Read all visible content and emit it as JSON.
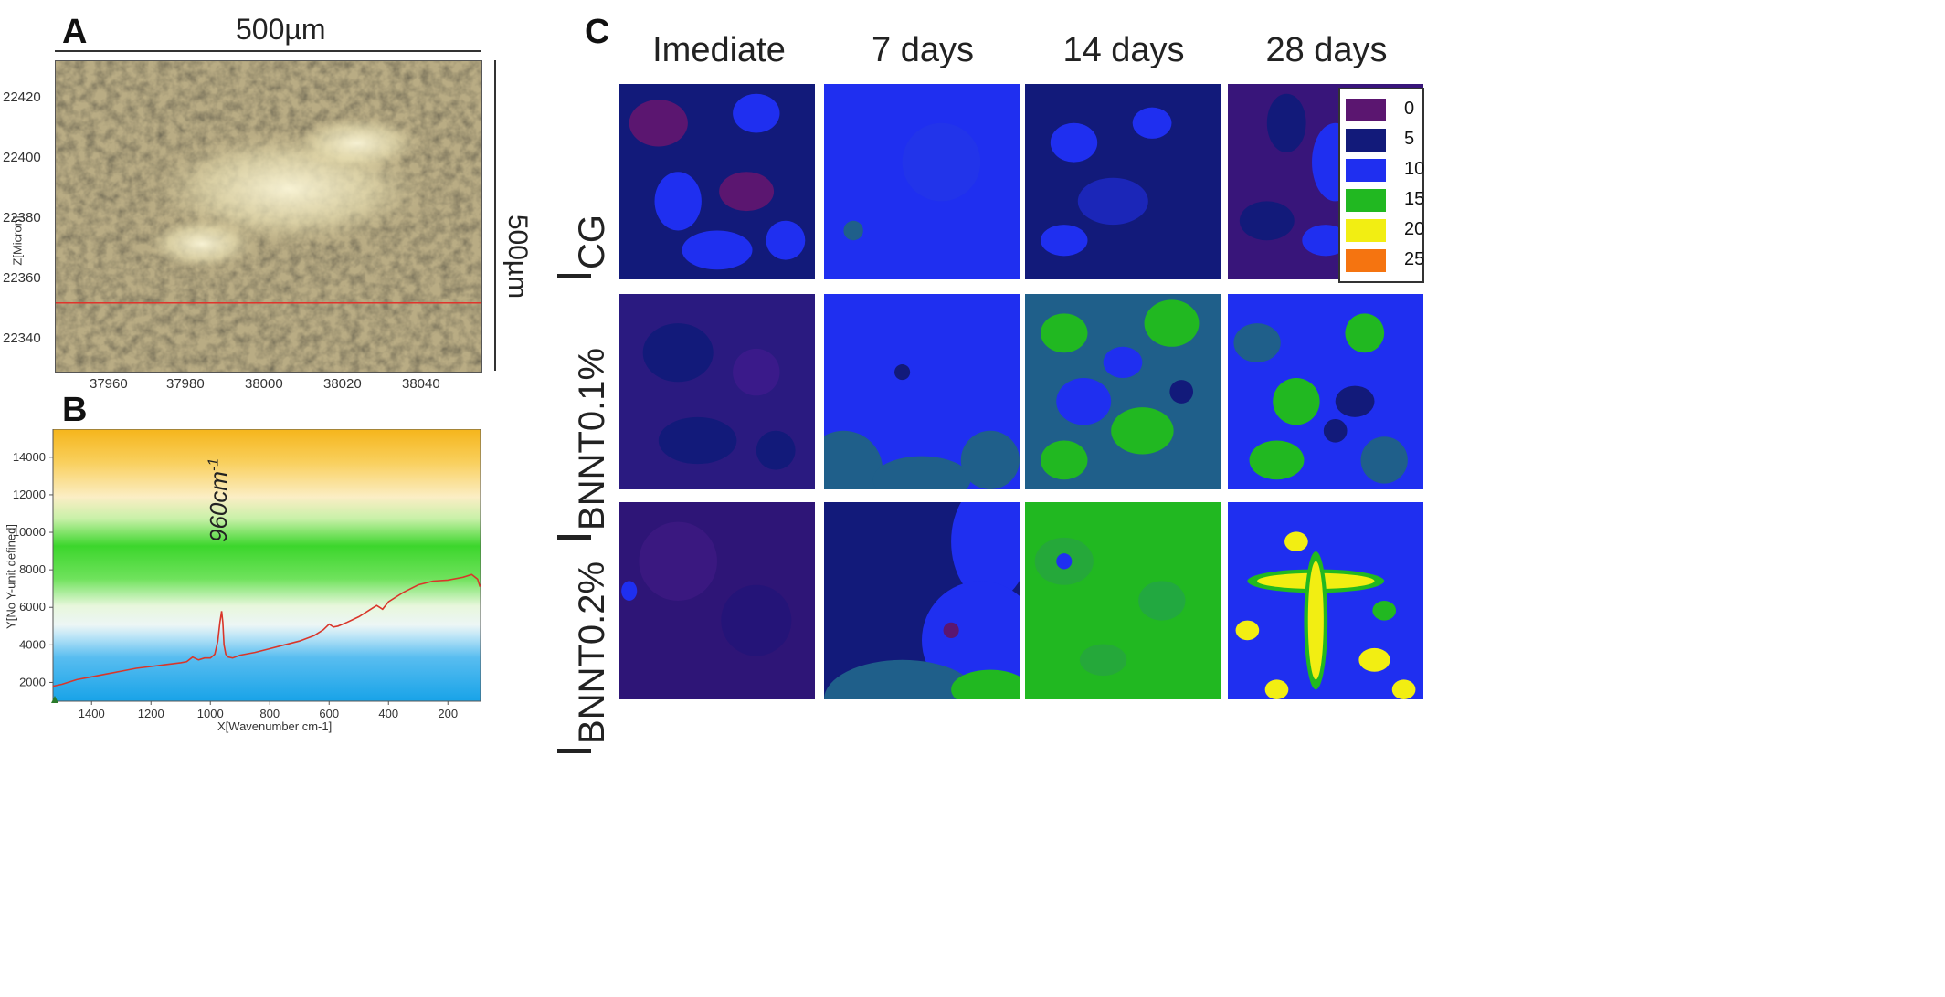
{
  "panels": {
    "a": {
      "letter": "A",
      "scale_top": "500µm",
      "scale_right": "500µm",
      "y_title": "Z[Micron]",
      "y_ticks": [
        "22420",
        "22400",
        "22380",
        "22360",
        "22340"
      ],
      "x_ticks": [
        "37960",
        "37980",
        "38000",
        "38020",
        "38040"
      ]
    },
    "b": {
      "letter": "B",
      "y_title": "Y[No Y-unit defined]",
      "x_title": "X[Wavenumber cm-1]",
      "y_ticks": [
        "14000",
        "12000",
        "10000",
        "8000",
        "6000",
        "4000",
        "2000"
      ],
      "x_ticks": [
        "1400",
        "1200",
        "1000",
        "800",
        "600",
        "400",
        "200"
      ],
      "peak_label": "960cm",
      "peak_sup": "-1"
    },
    "c": {
      "letter": "C",
      "columns": [
        "Imediate",
        "7 days",
        "14 days",
        "28 days"
      ],
      "rows": [
        {
          "base": "I",
          "sub": "CG"
        },
        {
          "base": "I",
          "sub": "BNNT0.1%"
        },
        {
          "base": "I",
          "sub": "BNNT0.2%"
        }
      ],
      "legend": [
        {
          "label": "0",
          "color": "#5b1670"
        },
        {
          "label": "5",
          "color": "#121a7a"
        },
        {
          "label": "10",
          "color": "#1f2ff0"
        },
        {
          "label": "15",
          "color": "#21b821"
        },
        {
          "label": "20",
          "color": "#f2ee12"
        },
        {
          "label": "25",
          "color": "#f57410"
        }
      ]
    }
  },
  "chart_data": {
    "type": "line",
    "xlabel": "X[Wavenumber cm-1]",
    "ylabel": "Y[No Y-unit defined]",
    "xlim": [
      1530,
      90
    ],
    "ylim": [
      1000,
      15500
    ],
    "annotations": [
      "960cm-1"
    ],
    "series": [
      {
        "x": [
          1530,
          1500,
          1450,
          1400,
          1350,
          1300,
          1250,
          1200,
          1150,
          1100,
          1080,
          1060,
          1040,
          1020,
          1000,
          985,
          975,
          968,
          962,
          958,
          954,
          948,
          940,
          925,
          900,
          850,
          800,
          750,
          700,
          650,
          620,
          600,
          585,
          570,
          540,
          500,
          460,
          440,
          430,
          420,
          400,
          350,
          300,
          250,
          200,
          150,
          120,
          100,
          92
        ],
        "y": [
          1800,
          1900,
          2150,
          2300,
          2450,
          2600,
          2750,
          2850,
          2950,
          3050,
          3100,
          3350,
          3200,
          3300,
          3300,
          3500,
          4200,
          5200,
          5800,
          5200,
          4000,
          3500,
          3350,
          3300,
          3450,
          3600,
          3800,
          4000,
          4200,
          4500,
          4800,
          5100,
          4950,
          5000,
          5200,
          5500,
          5900,
          6100,
          6000,
          5900,
          6300,
          6800,
          7200,
          7400,
          7450,
          7600,
          7750,
          7500,
          7100
        ]
      }
    ]
  }
}
